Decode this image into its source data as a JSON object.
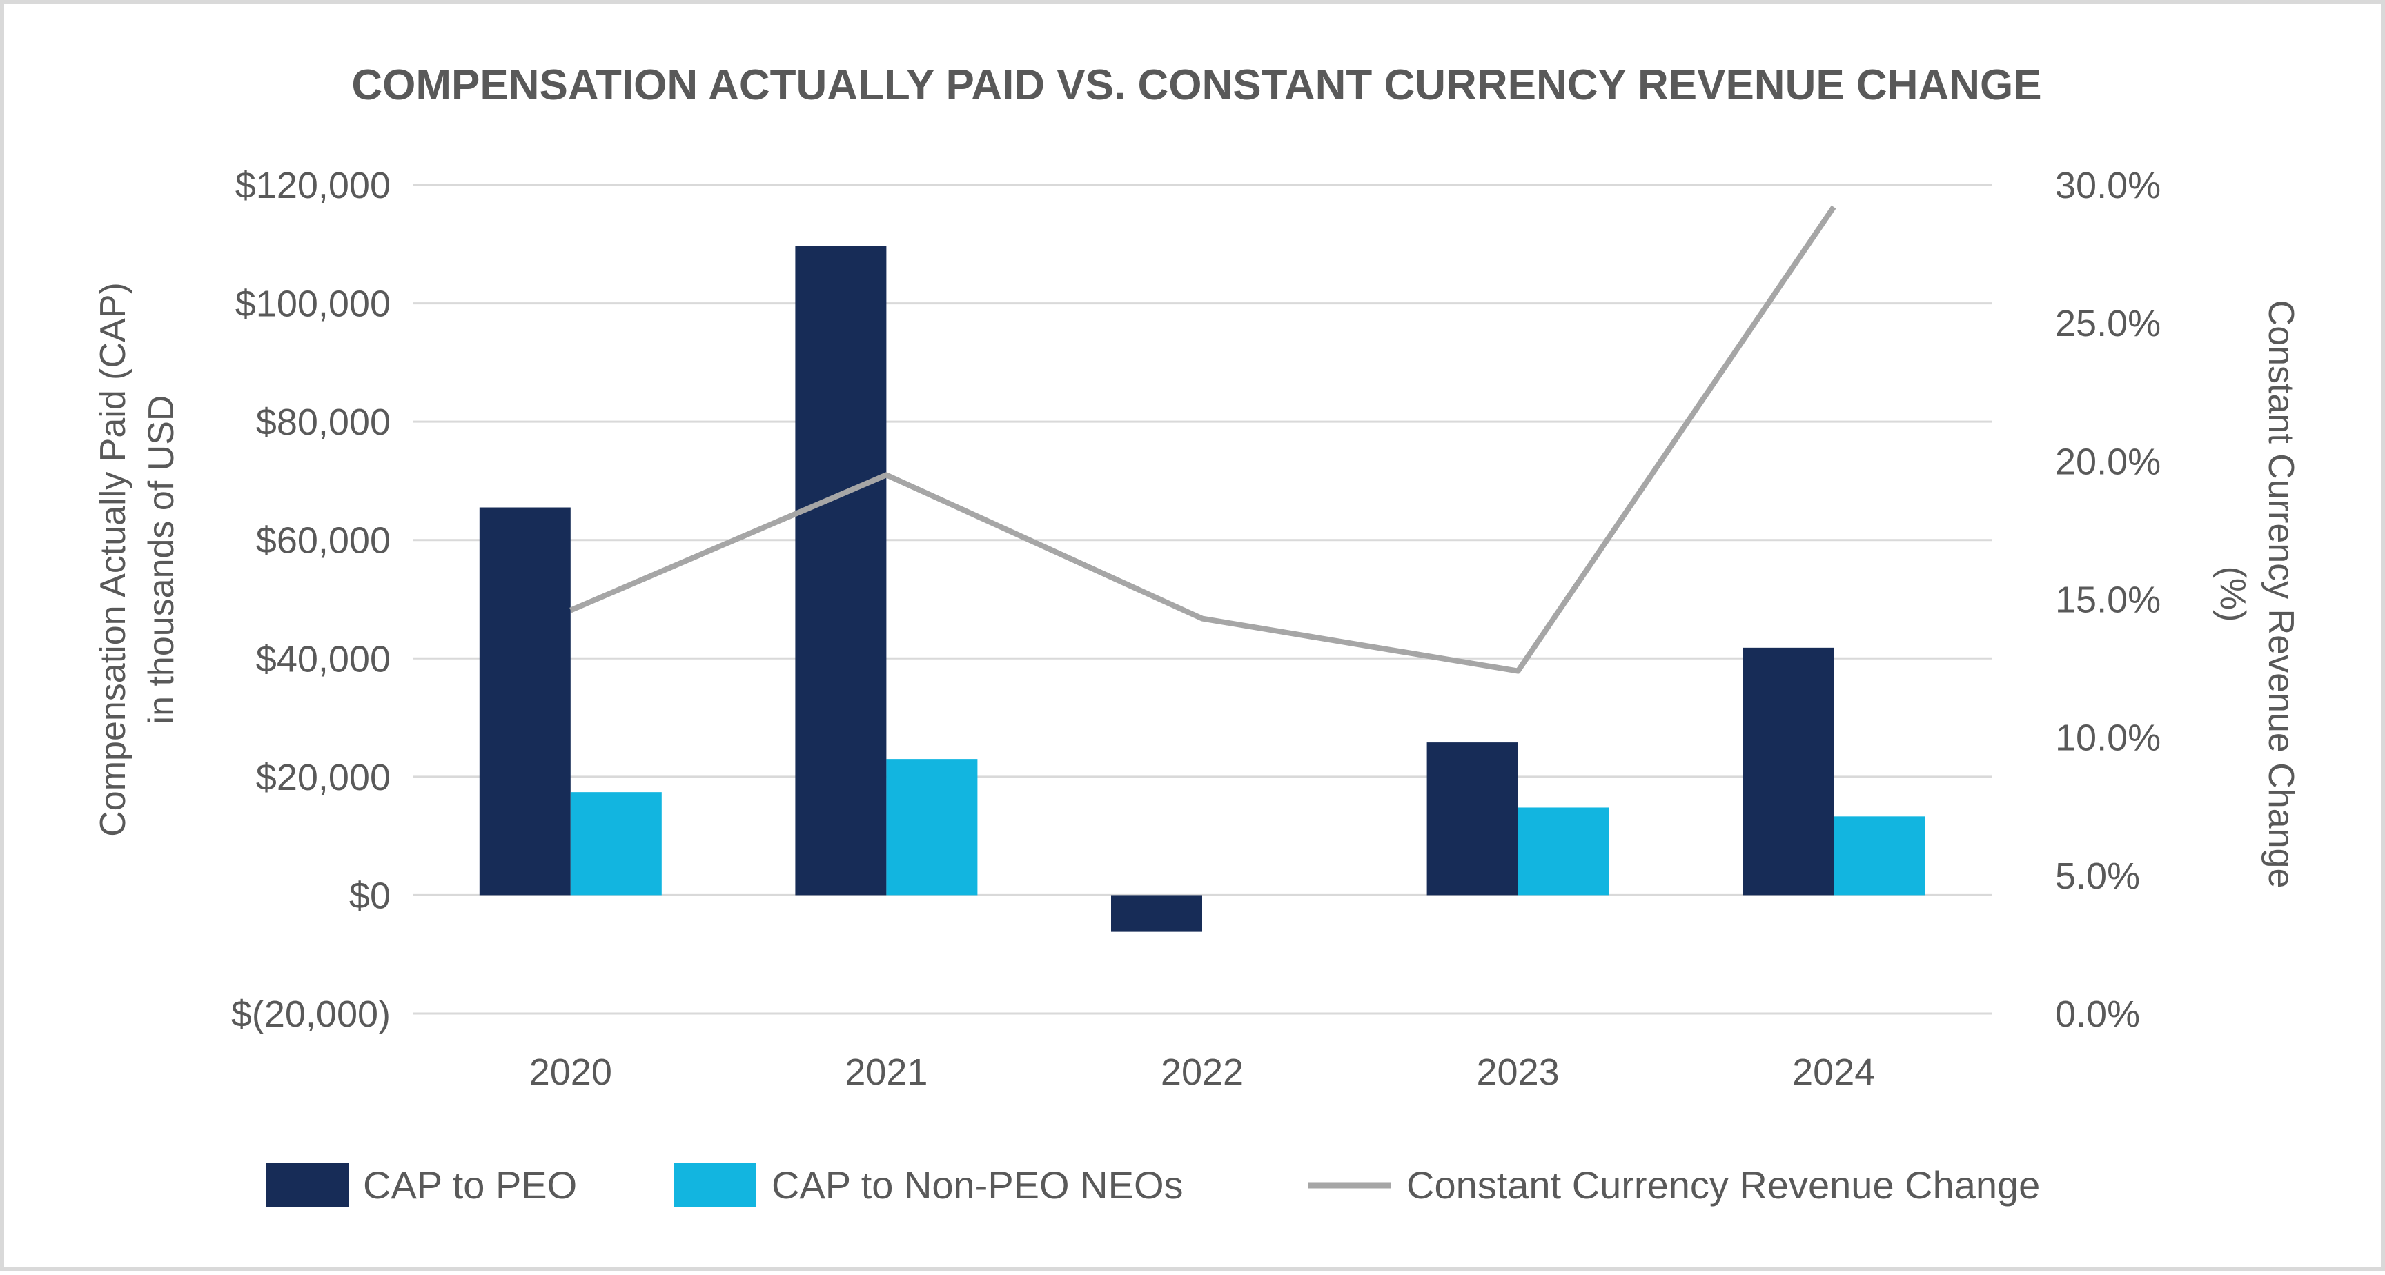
{
  "chart_data": {
    "type": "bar",
    "title": "COMPENSATION ACTUALLY PAID VS. CONSTANT CURRENCY REVENUE CHANGE",
    "categories": [
      "2020",
      "2021",
      "2022",
      "2023",
      "2024"
    ],
    "ylabel_line1": "Compensation Actually Paid (CAP)",
    "ylabel_line2": "in thousands of USD",
    "y2label_line1": "Constant Currency Revenue Change",
    "y2label_line2": "(%)",
    "ylim": [
      -20000,
      120000
    ],
    "y2lim": [
      0,
      30
    ],
    "y_ticks": [
      -20000,
      0,
      20000,
      40000,
      60000,
      80000,
      100000,
      120000
    ],
    "y_tick_labels": [
      "$(20,000)",
      "$0",
      "$20,000",
      "$40,000",
      "$60,000",
      "$80,000",
      "$100,000",
      "$120,000"
    ],
    "y2_ticks": [
      0,
      5,
      10,
      15,
      20,
      25,
      30
    ],
    "y2_tick_labels": [
      "0.0%",
      "5.0%",
      "10.0%",
      "15.0%",
      "20.0%",
      "25.0%",
      "30.0%"
    ],
    "grid": true,
    "legend_position": "bottom",
    "series": [
      {
        "name": "CAP to PEO",
        "kind": "bar",
        "axis": "left",
        "color": "#172c57",
        "values": [
          65500,
          109700,
          -6200,
          25800,
          41800
        ]
      },
      {
        "name": "CAP to Non-PEO NEOs",
        "kind": "bar",
        "axis": "left",
        "color": "#12b5e0",
        "values": [
          17400,
          23000,
          0,
          14800,
          13300
        ]
      },
      {
        "name": "Constant Currency Revenue Change",
        "kind": "line",
        "axis": "right",
        "color": "#a6a6a6",
        "values": [
          14.6,
          19.5,
          14.3,
          12.4,
          29.2
        ]
      }
    ],
    "colors": {
      "text": "#595959",
      "grid": "#d9d9d9"
    }
  }
}
